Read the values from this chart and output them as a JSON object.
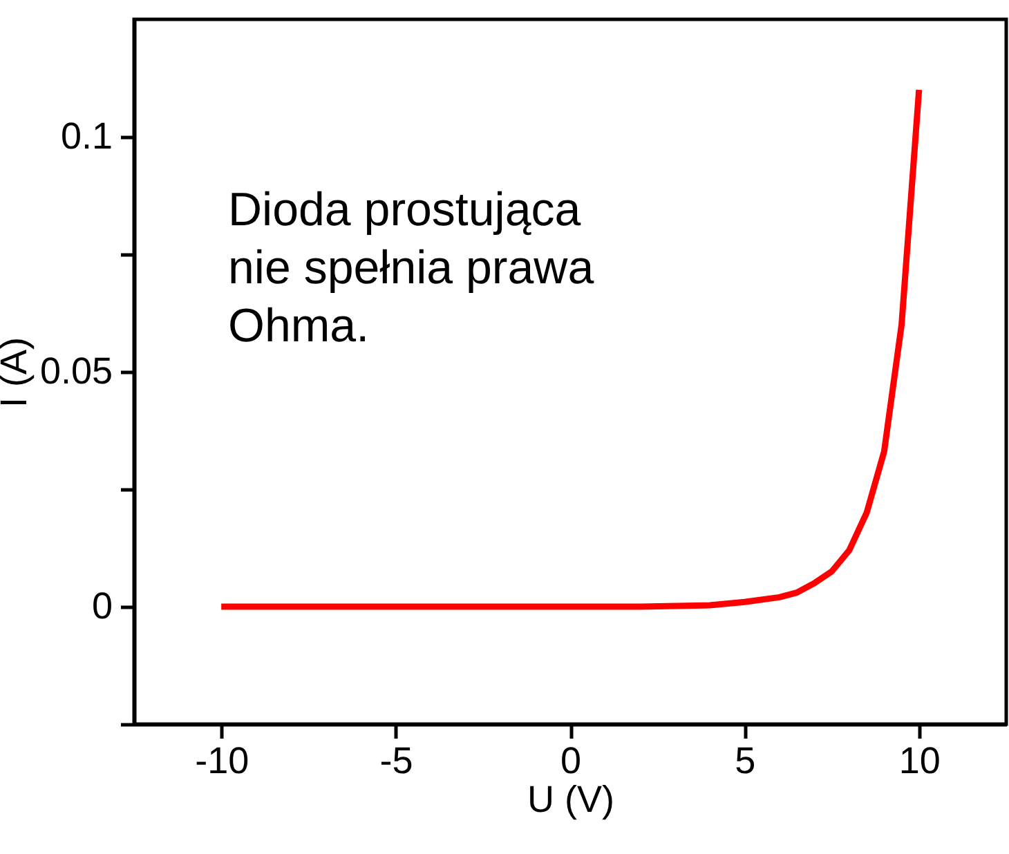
{
  "chart_data": {
    "type": "line",
    "xlabel": "U (V)",
    "ylabel": "I (A)",
    "annotations": [
      "Dioda prostująca\nnie spełnia prawa\nOhma."
    ],
    "x": [
      -10,
      -5,
      0,
      2,
      4,
      5,
      6,
      6.5,
      7,
      7.5,
      8,
      8.5,
      9,
      9.5,
      10
    ],
    "series": [
      {
        "color": "#ff0000",
        "values": [
          0,
          0,
          0,
          0,
          0.0003,
          0.001,
          0.002,
          0.003,
          0.005,
          0.0075,
          0.012,
          0.02,
          0.033,
          0.06,
          0.11
        ]
      }
    ],
    "xlim": [
      -12.5,
      12.5
    ],
    "xticks": [
      -10,
      -5,
      0,
      5,
      10
    ],
    "ylim": [
      -0.025,
      0.125
    ],
    "yticks": [
      {
        "value": -0.025,
        "label": null
      },
      0,
      {
        "value": 0.025,
        "label": null
      },
      {
        "value": 0.05,
        "label": "0.05"
      },
      {
        "value": 0.075,
        "label": null
      },
      {
        "value": 0.1,
        "label": "0.1"
      }
    ],
    "grid": false,
    "marker": "none",
    "line_style": "solid"
  }
}
